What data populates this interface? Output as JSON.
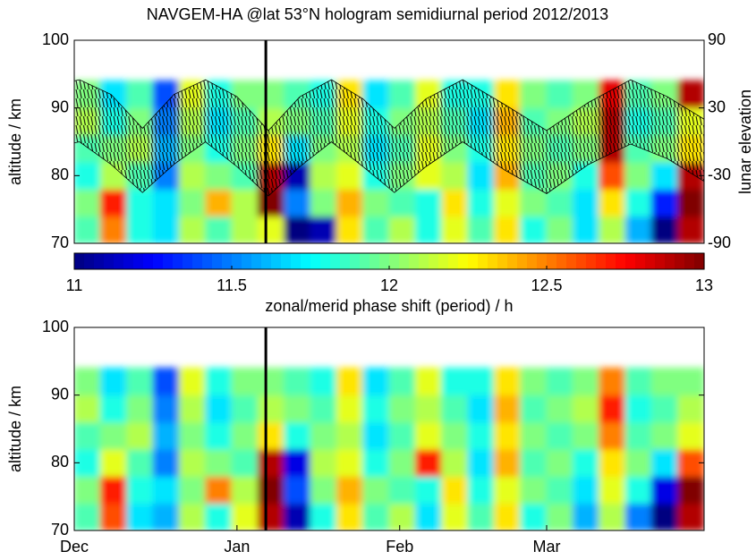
{
  "chart_data": [
    {
      "type": "heatmap",
      "title": "NAVGEM-HA @lat 53°N hologram semidiurnal period 2012/2013",
      "ylabel": "altitude / km",
      "xlim": [
        1,
        121
      ],
      "ylim": [
        70,
        100
      ],
      "yticks": [
        70,
        80,
        90,
        100
      ],
      "x_edges": [
        1,
        6,
        11,
        16,
        21,
        26,
        31,
        36,
        41,
        46,
        51,
        56,
        61,
        66,
        71,
        76,
        81,
        86,
        91,
        96,
        101,
        106,
        111,
        116,
        121
      ],
      "y_edges": [
        70,
        74,
        78,
        82,
        86,
        90,
        94
      ],
      "values": [
        [
          11.9,
          12.5,
          11.8,
          11.7,
          12.1,
          11.9,
          12.1,
          12.2,
          11.0,
          11.1,
          12.3,
          11.9,
          12.1,
          11.8,
          12.2,
          11.9,
          12.3,
          11.8,
          12.0,
          11.7,
          12.1,
          11.6,
          11.0,
          12.9
        ],
        [
          12.0,
          12.7,
          11.8,
          11.7,
          12.0,
          12.4,
          12.1,
          13.0,
          11.5,
          12.0,
          12.4,
          12.0,
          11.9,
          11.8,
          12.3,
          11.8,
          12.2,
          12.0,
          11.9,
          11.7,
          12.3,
          11.8,
          11.3,
          13.0
        ],
        [
          11.8,
          12.1,
          11.9,
          11.5,
          12.1,
          12.0,
          11.9,
          12.9,
          11.1,
          12.1,
          12.2,
          11.8,
          12.0,
          12.2,
          12.1,
          11.7,
          12.4,
          11.9,
          12.0,
          11.8,
          12.6,
          12.0,
          11.7,
          12.9
        ],
        [
          11.9,
          12.0,
          12.1,
          11.6,
          12.0,
          11.8,
          12.0,
          12.3,
          11.7,
          12.0,
          12.1,
          11.7,
          11.9,
          12.2,
          12.0,
          11.8,
          12.3,
          12.0,
          11.9,
          12.0,
          12.9,
          11.9,
          12.0,
          12.3
        ],
        [
          12.1,
          11.8,
          12.0,
          11.5,
          12.1,
          11.7,
          11.9,
          12.1,
          12.0,
          11.9,
          12.2,
          11.8,
          12.0,
          12.1,
          11.9,
          11.7,
          12.4,
          11.9,
          12.0,
          12.1,
          12.9,
          11.8,
          11.9,
          12.2
        ],
        [
          12.0,
          11.7,
          11.9,
          11.4,
          12.2,
          11.8,
          12.0,
          12.0,
          11.9,
          11.8,
          12.3,
          11.7,
          11.9,
          12.2,
          11.8,
          11.8,
          12.3,
          12.0,
          11.9,
          12.0,
          12.8,
          11.9,
          12.0,
          12.9
        ]
      ],
      "clim": [
        11,
        13
      ],
      "vline_x": 37.5,
      "y2label": "lunar elevation",
      "y2lim": [
        -90,
        90
      ],
      "y2ticks": [
        -90,
        -30,
        30,
        90
      ],
      "lunar_envelope": {
        "axis": "y2",
        "color": "#000000",
        "x": [
          1,
          2,
          8,
          14,
          20,
          26,
          32,
          38,
          44,
          50,
          56,
          62,
          68,
          75,
          83,
          91,
          99,
          107,
          114,
          121
        ],
        "upper": [
          54,
          55,
          42,
          12,
          42,
          55,
          40,
          10,
          40,
          55,
          38,
          12,
          38,
          55,
          33,
          10,
          35,
          55,
          40,
          20
        ],
        "lower": [
          -1,
          0,
          -20,
          -45,
          -20,
          0,
          -22,
          -48,
          -22,
          0,
          -22,
          -45,
          -22,
          0,
          -25,
          -46,
          -20,
          -2,
          -15,
          -35
        ]
      },
      "colorbar": {
        "label": "zonal/merid phase shift (period) / h",
        "lim": [
          11,
          13
        ],
        "ticks": [
          11,
          11.5,
          12,
          12.5,
          13
        ]
      }
    },
    {
      "type": "heatmap",
      "ylabel": "altitude / km",
      "xlim": [
        1,
        121
      ],
      "ylim": [
        70,
        100
      ],
      "yticks": [
        70,
        80,
        90,
        100
      ],
      "xticks": [
        {
          "value": 1,
          "label": "Dec"
        },
        {
          "value": 32,
          "label": "Jan"
        },
        {
          "value": 63,
          "label": "Feb"
        },
        {
          "value": 91,
          "label": "Mar"
        }
      ],
      "x_edges": [
        1,
        6,
        11,
        16,
        21,
        26,
        31,
        36,
        41,
        46,
        51,
        56,
        61,
        66,
        71,
        76,
        81,
        86,
        91,
        96,
        101,
        106,
        111,
        116,
        121
      ],
      "y_edges": [
        70,
        74,
        78,
        82,
        86,
        90,
        94
      ],
      "values": [
        [
          11.9,
          12.6,
          11.7,
          11.6,
          12.1,
          11.8,
          12.2,
          12.9,
          11.1,
          11.8,
          12.3,
          11.9,
          12.1,
          11.7,
          12.2,
          11.9,
          12.3,
          11.8,
          12.0,
          11.6,
          12.1,
          11.5,
          11.0,
          12.9
        ],
        [
          12.0,
          12.7,
          11.8,
          11.7,
          12.0,
          12.5,
          12.1,
          13.0,
          11.4,
          12.0,
          12.4,
          12.0,
          11.9,
          11.8,
          12.3,
          11.8,
          12.2,
          12.0,
          11.9,
          11.7,
          12.2,
          11.8,
          11.2,
          13.0
        ],
        [
          11.8,
          12.2,
          11.9,
          11.5,
          12.1,
          12.0,
          11.9,
          12.9,
          11.2,
          12.1,
          12.2,
          11.8,
          12.0,
          12.7,
          12.1,
          11.7,
          12.4,
          11.9,
          12.0,
          11.8,
          12.3,
          12.0,
          11.7,
          12.6
        ],
        [
          11.9,
          12.0,
          12.1,
          11.6,
          12.0,
          11.8,
          12.0,
          12.3,
          11.8,
          12.0,
          12.1,
          11.7,
          11.9,
          12.2,
          12.0,
          11.8,
          12.3,
          12.0,
          11.9,
          12.0,
          12.5,
          11.9,
          12.0,
          12.2
        ],
        [
          12.1,
          11.8,
          12.0,
          11.5,
          12.1,
          11.7,
          11.9,
          12.1,
          12.0,
          11.9,
          12.2,
          11.8,
          12.0,
          12.1,
          11.9,
          11.7,
          12.4,
          11.9,
          12.0,
          12.1,
          12.7,
          11.8,
          11.9,
          12.1
        ],
        [
          12.0,
          11.7,
          11.9,
          11.4,
          12.2,
          11.8,
          12.0,
          12.0,
          11.9,
          11.8,
          12.3,
          11.7,
          11.9,
          12.2,
          11.8,
          11.8,
          12.3,
          12.0,
          11.9,
          12.0,
          12.5,
          11.9,
          12.0,
          12.0
        ]
      ],
      "clim": [
        11,
        13
      ],
      "vline_x": 37.5
    }
  ]
}
